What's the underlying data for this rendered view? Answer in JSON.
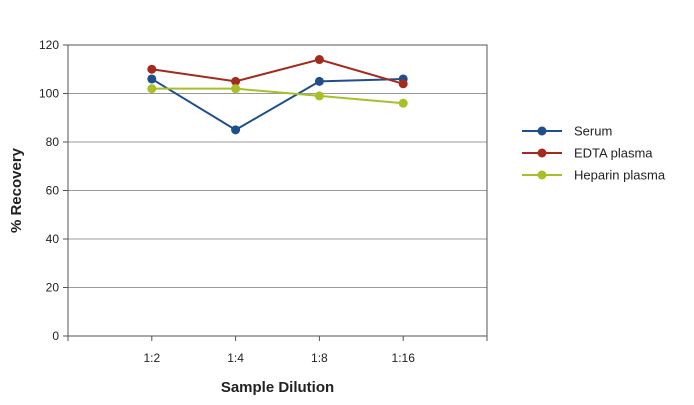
{
  "chart_data": {
    "type": "line",
    "title": "",
    "xlabel": "Sample Dilution",
    "ylabel": "% Recovery",
    "categories": [
      "1:2",
      "1:4",
      "1:8",
      "1:16"
    ],
    "ylim": [
      0,
      120
    ],
    "yticks": [
      0,
      20,
      40,
      60,
      80,
      100,
      120
    ],
    "grid": true,
    "legend_position": "right",
    "series": [
      {
        "name": "Serum",
        "color": "#1f4e8c",
        "values": [
          106,
          85,
          105,
          106
        ]
      },
      {
        "name": "EDTA plasma",
        "color": "#a52a1e",
        "values": [
          110,
          105,
          114,
          104
        ]
      },
      {
        "name": "Heparin plasma",
        "color": "#a8bf2a",
        "values": [
          102,
          102,
          99,
          96
        ]
      }
    ]
  }
}
